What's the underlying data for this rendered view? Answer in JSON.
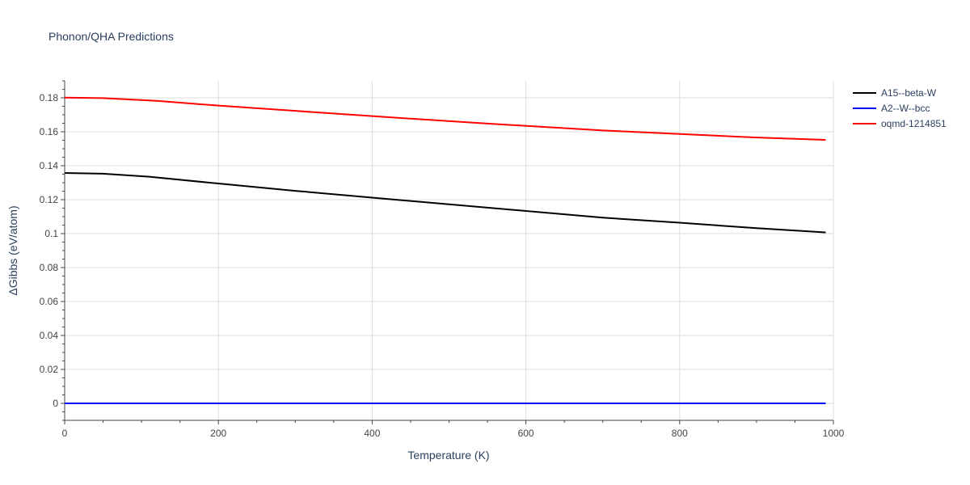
{
  "chart_data": {
    "type": "line",
    "title": "Phonon/QHA Predictions",
    "xlabel": "Temperature (K)",
    "ylabel": "ΔGibbs (eV/atom)",
    "xlim": [
      0,
      1000
    ],
    "ylim": [
      -0.01,
      0.19
    ],
    "x_ticks": [
      0,
      200,
      400,
      600,
      800,
      1000
    ],
    "x_tick_labels": [
      "0",
      "200",
      "400",
      "600",
      "800",
      "1000"
    ],
    "y_ticks": [
      0,
      0.02,
      0.04,
      0.06,
      0.08,
      0.1,
      0.12,
      0.14,
      0.16,
      0.18
    ],
    "y_tick_labels": [
      "0",
      "0.02",
      "0.04",
      "0.06",
      "0.08",
      "0.1",
      "0.12",
      "0.14",
      "0.16",
      "0.18"
    ],
    "grid": true,
    "legend_position": "top-right",
    "series": [
      {
        "name": "A15--beta-W",
        "color": "#000000",
        "x": [
          0,
          50,
          110,
          200,
          300,
          400,
          550,
          700,
          800,
          900,
          990
        ],
        "y": [
          0.1357,
          0.1353,
          0.1335,
          0.1295,
          0.1252,
          0.1212,
          0.1153,
          0.1094,
          0.1064,
          0.1032,
          0.1007
        ]
      },
      {
        "name": "A2--W--bcc",
        "color": "#0000ff",
        "x": [
          0,
          990
        ],
        "y": [
          0,
          0
        ]
      },
      {
        "name": "oqmd-1214851",
        "color": "#ff0000",
        "x": [
          0,
          50,
          120,
          200,
          300,
          400,
          550,
          700,
          800,
          900,
          990
        ],
        "y": [
          0.1801,
          0.1798,
          0.1782,
          0.1754,
          0.1723,
          0.1692,
          0.1648,
          0.1608,
          0.1587,
          0.1566,
          0.1552
        ]
      }
    ]
  }
}
